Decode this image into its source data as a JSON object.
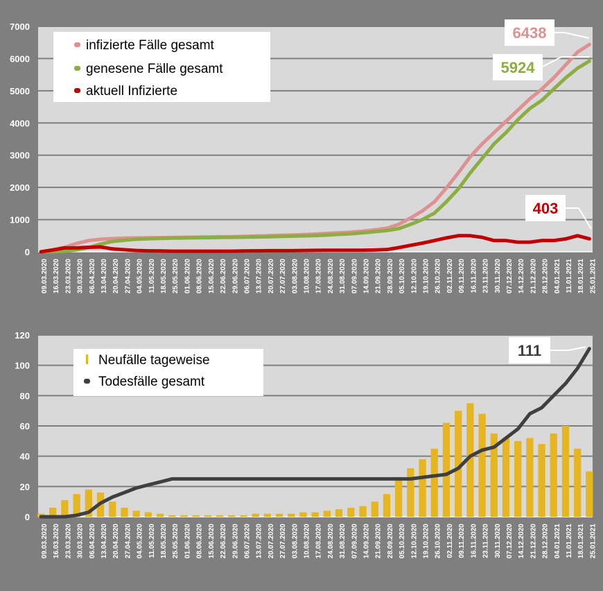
{
  "colors": {
    "infected": "#de9191",
    "recovered": "#8cad3f",
    "active": "#c00000",
    "daily": "#e6b522",
    "deaths": "#3f3f3f",
    "plot_bg": "#d9d9d9",
    "page_bg": "#7f7f7f"
  },
  "chart_data": [
    {
      "type": "line",
      "x_labels": [
        "09.03.2020",
        "16.03.2020",
        "23.03.2020",
        "30.03.2020",
        "06.04.2020",
        "13.04.2020",
        "20.04.2020",
        "27.04.2020",
        "04.05.2020",
        "11.05.2020",
        "18.05.2020",
        "25.05.2020",
        "01.06.2020",
        "08.06.2020",
        "15.06.2020",
        "22.06.2020",
        "29.06.2020",
        "06.07.2020",
        "13.07.2020",
        "20.07.2020",
        "27.07.2020",
        "03.08.2020",
        "10.08.2020",
        "17.08.2020",
        "24.08.2020",
        "31.08.2020",
        "07.09.2020",
        "14.09.2020",
        "21.09.2020",
        "28.09.2020",
        "05.10.2020",
        "12.10.2020",
        "19.10.2020",
        "26.10.2020",
        "02.11.2020",
        "09.11.2020",
        "16.11.2020",
        "23.11.2020",
        "30.11.2020",
        "07.12.2020",
        "14.12.2020",
        "21.12.2020",
        "28.12.2020",
        "04.01.2021",
        "11.01.2021",
        "18.01.2021",
        "25.01.2021"
      ],
      "ylim": [
        0,
        7000
      ],
      "y_ticks": [
        "0",
        "1000",
        "2000",
        "3000",
        "4000",
        "5000",
        "6000",
        "7000"
      ],
      "grid": true,
      "legend_position": "top-left",
      "series": [
        {
          "name": "infizierte Fälle gesamt",
          "values": [
            0,
            60,
            140,
            260,
            350,
            390,
            410,
            425,
            430,
            435,
            440,
            445,
            450,
            455,
            460,
            465,
            470,
            480,
            490,
            500,
            510,
            520,
            535,
            550,
            570,
            590,
            610,
            640,
            680,
            730,
            850,
            1050,
            1270,
            1550,
            1980,
            2450,
            2950,
            3350,
            3700,
            4050,
            4400,
            4750,
            5050,
            5400,
            5800,
            6200,
            6438
          ],
          "end_label": "6438"
        },
        {
          "name": "genesene Fälle gesamt",
          "values": [
            0,
            5,
            20,
            60,
            130,
            240,
            320,
            360,
            390,
            405,
            415,
            425,
            430,
            435,
            440,
            445,
            450,
            455,
            460,
            465,
            475,
            485,
            495,
            505,
            520,
            540,
            560,
            590,
            625,
            660,
            720,
            850,
            1000,
            1200,
            1550,
            1950,
            2450,
            2900,
            3350,
            3700,
            4100,
            4450,
            4700,
            5050,
            5400,
            5700,
            5924
          ],
          "end_label": "5924"
        },
        {
          "name": "aktuell Infizierte",
          "values": [
            0,
            55,
            120,
            120,
            140,
            150,
            90,
            65,
            40,
            30,
            25,
            20,
            20,
            20,
            20,
            20,
            20,
            25,
            30,
            35,
            35,
            35,
            40,
            45,
            50,
            50,
            50,
            50,
            55,
            70,
            130,
            200,
            270,
            350,
            430,
            500,
            500,
            450,
            350,
            350,
            300,
            300,
            350,
            350,
            400,
            500,
            403
          ],
          "end_label": "403"
        }
      ]
    },
    {
      "type": "bar+line",
      "x_labels": [
        "09.03.2020",
        "16.03.2020",
        "23.03.2020",
        "30.03.2020",
        "06.04.2020",
        "13.04.2020",
        "20.04.2020",
        "27.04.2020",
        "04.05.2020",
        "11.05.2020",
        "18.05.2020",
        "25.05.2020",
        "01.06.2020",
        "08.06.2020",
        "15.06.2020",
        "22.06.2020",
        "29.06.2020",
        "06.07.2020",
        "13.07.2020",
        "20.07.2020",
        "27.07.2020",
        "03.08.2020",
        "10.08.2020",
        "17.08.2020",
        "24.08.2020",
        "31.08.2020",
        "07.09.2020",
        "14.09.2020",
        "21.09.2020",
        "28.09.2020",
        "05.10.2020",
        "12.10.2020",
        "19.10.2020",
        "26.10.2020",
        "02.11.2020",
        "09.11.2020",
        "16.11.2020",
        "23.11.2020",
        "30.11.2020",
        "07.12.2020",
        "14.12.2020",
        "21.12.2020",
        "28.12.2020",
        "04.01.2021",
        "11.01.2021",
        "18.01.2021",
        "25.01.2021"
      ],
      "ylim": [
        0,
        120
      ],
      "y_ticks": [
        "0",
        "20",
        "40",
        "60",
        "80",
        "100",
        "120"
      ],
      "grid": true,
      "legend_position": "top-left",
      "series": [
        {
          "name": "Neufälle tageweise",
          "type": "bar",
          "values": [
            2,
            6,
            11,
            15,
            18,
            16,
            10,
            6,
            4,
            3,
            2,
            1,
            1,
            1,
            1,
            1,
            1,
            1,
            2,
            2,
            2,
            2,
            3,
            3,
            4,
            5,
            6,
            7,
            10,
            15,
            25,
            32,
            38,
            45,
            62,
            70,
            75,
            68,
            55,
            52,
            50,
            52,
            48,
            55,
            60,
            45,
            30
          ]
        },
        {
          "name": "Todesfälle gesamt",
          "type": "line",
          "values": [
            0,
            0,
            0,
            1,
            3,
            9,
            13,
            16,
            19,
            21,
            23,
            25,
            25,
            25,
            25,
            25,
            25,
            25,
            25,
            25,
            25,
            25,
            25,
            25,
            25,
            25,
            25,
            25,
            25,
            25,
            25,
            25,
            26,
            27,
            28,
            32,
            40,
            44,
            46,
            52,
            58,
            68,
            72,
            80,
            88,
            98,
            111
          ],
          "end_label": "111"
        }
      ]
    }
  ]
}
